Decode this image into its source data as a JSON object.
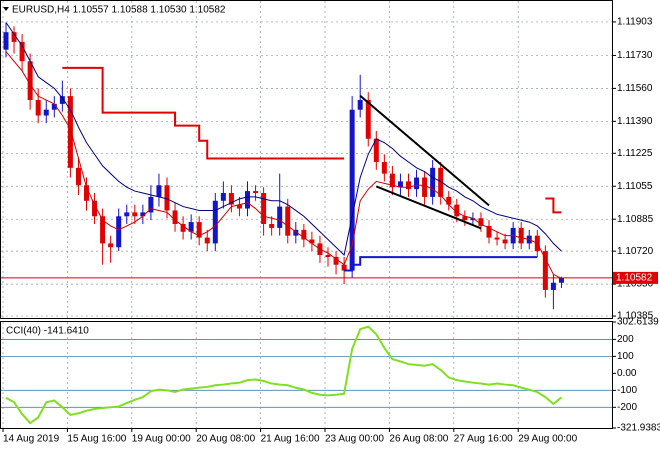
{
  "chart_data": [
    {
      "type": "candlestick",
      "title": "EURUSD,H4  1.10557 1.10588 1.10530 1.10582",
      "categories": [
        "14 Aug 2019",
        null,
        null,
        null,
        null,
        null,
        null,
        null,
        "15 Aug 16:00",
        null,
        null,
        null,
        null,
        null,
        null,
        null,
        "19 Aug 00:00",
        null,
        null,
        null,
        null,
        null,
        null,
        null,
        "20 Aug 08:00",
        null,
        null,
        null,
        null,
        null,
        null,
        null,
        "21 Aug 16:00",
        null,
        null,
        null,
        null,
        null,
        null,
        null,
        "23 Aug 00:00",
        null,
        null,
        null,
        null,
        null,
        null,
        null,
        "26 Aug 08:00",
        null,
        null,
        null,
        null,
        null,
        null,
        null,
        "27 Aug 16:00",
        null,
        null,
        null,
        null,
        null,
        null,
        null,
        "29 Aug 00:00",
        null,
        null,
        null,
        null,
        null
      ],
      "open": [
        1.1176,
        1.1185,
        1.118,
        1.117,
        1.115,
        1.1142,
        1.1145,
        1.1148,
        1.1152,
        1.1115,
        1.1106,
        1.1098,
        1.109,
        1.1076,
        1.1074,
        1.109,
        1.1092,
        1.109,
        1.1092,
        1.11,
        1.1106,
        1.1093,
        1.1086,
        1.1082,
        1.1087,
        1.1079,
        1.1076,
        1.1098,
        1.1102,
        1.1096,
        1.1094,
        1.1103,
        1.1102,
        1.1086,
        1.1084,
        1.1095,
        1.108,
        1.1083,
        1.1078,
        1.1076,
        1.107,
        1.1069,
        1.1065,
        1.1062,
        1.1145,
        1.115,
        1.113,
        1.1118,
        1.1112,
        1.1105,
        1.1108,
        1.1104,
        1.111,
        1.11,
        1.1115,
        1.11,
        1.1096,
        1.109,
        1.1088,
        1.1089,
        1.1085,
        1.1079,
        1.1078,
        1.1076,
        1.1084,
        1.1076,
        1.108,
        1.1072,
        1.1052,
        1.10557
      ],
      "high": [
        1.119,
        1.1188,
        1.1184,
        1.1174,
        1.1156,
        1.115,
        1.1152,
        1.116,
        1.1156,
        1.112,
        1.111,
        1.1102,
        1.1094,
        1.108,
        1.1094,
        1.1096,
        1.1096,
        1.1096,
        1.1106,
        1.1112,
        1.111,
        1.1097,
        1.109,
        1.1091,
        1.109,
        1.1083,
        1.1102,
        1.1108,
        1.1106,
        1.11,
        1.1108,
        1.1106,
        1.1105,
        1.109,
        1.1112,
        1.1099,
        1.1087,
        1.1086,
        1.1082,
        1.108,
        1.1074,
        1.1072,
        1.1069,
        1.1152,
        1.1163,
        1.1154,
        1.1134,
        1.1122,
        1.1116,
        1.1112,
        1.1112,
        1.1114,
        1.1113,
        1.1119,
        1.1118,
        1.1103,
        1.1099,
        1.1093,
        1.1092,
        1.1092,
        1.1088,
        1.1082,
        1.1081,
        1.1087,
        1.1087,
        1.1083,
        1.1083,
        1.1075,
        1.106,
        1.10588
      ],
      "low": [
        1.1172,
        1.1174,
        1.1165,
        1.1145,
        1.1138,
        1.1138,
        1.1141,
        1.1144,
        1.111,
        1.1101,
        1.1093,
        1.1086,
        1.1065,
        1.1066,
        1.1072,
        1.1086,
        1.1086,
        1.1086,
        1.1088,
        1.1095,
        1.1089,
        1.1082,
        1.1078,
        1.1078,
        1.1075,
        1.1072,
        1.1072,
        1.1094,
        1.1092,
        1.109,
        1.109,
        1.1098,
        1.108,
        1.108,
        1.108,
        1.1076,
        1.1076,
        1.1074,
        1.1072,
        1.1066,
        1.1064,
        1.106,
        1.1055,
        1.1058,
        1.1141,
        1.1126,
        1.1114,
        1.1108,
        1.1101,
        1.1101,
        1.11,
        1.11,
        1.1096,
        1.1096,
        1.1096,
        1.1093,
        1.1087,
        1.1085,
        1.1085,
        1.1082,
        1.1076,
        1.1075,
        1.1073,
        1.1073,
        1.1073,
        1.1073,
        1.1069,
        1.1048,
        1.1042,
        1.1053
      ],
      "close": [
        1.1185,
        1.118,
        1.117,
        1.115,
        1.1142,
        1.1145,
        1.1148,
        1.1152,
        1.1115,
        1.1106,
        1.1098,
        1.109,
        1.1076,
        1.1074,
        1.109,
        1.1092,
        1.109,
        1.1092,
        1.11,
        1.1106,
        1.1093,
        1.1086,
        1.1082,
        1.1087,
        1.1079,
        1.1076,
        1.1098,
        1.1102,
        1.1096,
        1.1094,
        1.1103,
        1.1102,
        1.1086,
        1.1084,
        1.1095,
        1.108,
        1.1083,
        1.1078,
        1.1076,
        1.107,
        1.1069,
        1.1065,
        1.1062,
        1.1145,
        1.115,
        1.113,
        1.1118,
        1.1112,
        1.1105,
        1.1108,
        1.1104,
        1.111,
        1.11,
        1.1115,
        1.11,
        1.1096,
        1.109,
        1.1088,
        1.1089,
        1.1085,
        1.1079,
        1.1078,
        1.1076,
        1.1084,
        1.1076,
        1.108,
        1.1072,
        1.1052,
        1.10557,
        1.10582
      ],
      "up_color": "#1414c8",
      "down_color": "#e00000",
      "series": [
        {
          "color": "#000080",
          "values": [
            1.119,
            1.1184,
            1.1178,
            1.117,
            1.1162,
            1.1159,
            1.1156,
            1.1151,
            1.1145,
            1.1136,
            1.1128,
            1.1122,
            1.1116,
            1.1112,
            1.1108,
            1.1105,
            1.1103,
            1.1102,
            1.1101,
            1.11,
            1.1099,
            1.1097,
            1.1095,
            1.1094,
            1.1093,
            1.1093,
            1.1093,
            1.1095,
            1.1097,
            1.1099,
            1.11,
            1.11,
            1.1099,
            1.1098,
            1.1098,
            1.1096,
            1.1093,
            1.109,
            1.1086,
            1.1082,
            1.1078,
            1.1074,
            1.107,
            1.109,
            1.111,
            1.1122,
            1.113,
            1.1128,
            1.1125,
            1.1121,
            1.1118,
            1.1115,
            1.1113,
            1.111,
            1.1108,
            1.1105,
            1.1103,
            1.11,
            1.1098,
            1.1095,
            1.1093,
            1.1091,
            1.109,
            1.1089,
            1.1088,
            1.1087,
            1.1085,
            1.1081,
            1.1076,
            1.1072
          ]
        },
        {
          "color": "#cc0000",
          "values": [
            1.1175,
            1.117,
            1.1165,
            1.1158,
            1.1152,
            1.115,
            1.1148,
            1.1142,
            1.1135,
            1.112,
            1.1105,
            1.1096,
            1.1088,
            1.1085,
            1.1083,
            1.1085,
            1.1087,
            1.109,
            1.1094,
            1.1093,
            1.1092,
            1.1088,
            1.1085,
            1.1082,
            1.108,
            1.1082,
            1.1085,
            1.109,
            1.1095,
            1.1096,
            1.1097,
            1.1094,
            1.109,
            1.1089,
            1.1088,
            1.1085,
            1.1082,
            1.1079,
            1.1076,
            1.1073,
            1.1071,
            1.1068,
            1.1065,
            1.1075,
            1.1098,
            1.1104,
            1.1108,
            1.1107,
            1.1106,
            1.1105,
            1.1105,
            1.1106,
            1.1106,
            1.1104,
            1.1101,
            1.1096,
            1.1092,
            1.109,
            1.1089,
            1.1086,
            1.1084,
            1.1082,
            1.108,
            1.108,
            1.1079,
            1.1078,
            1.1076,
            1.1068,
            1.106,
            1.1058
          ]
        },
        {
          "color": "#e00000",
          "step": true,
          "values": [
            null,
            null,
            null,
            null,
            null,
            null,
            null,
            1.11666,
            1.11666,
            1.11666,
            1.11666,
            1.11666,
            1.11435,
            1.11435,
            1.11435,
            1.11435,
            1.11435,
            1.11435,
            1.11435,
            1.11435,
            1.11435,
            1.11368,
            1.11368,
            1.11368,
            1.1129,
            1.11198,
            1.11198,
            1.11198,
            1.11198,
            1.11198,
            1.11198,
            1.11198,
            1.11198,
            1.11198,
            1.11198,
            1.11198,
            1.11198,
            1.11198,
            1.11198,
            1.11198,
            1.11198,
            1.11198,
            1.11198,
            null,
            null,
            null,
            null,
            null,
            null,
            null,
            null,
            null,
            null,
            null,
            null,
            null,
            null,
            null,
            null,
            null,
            null,
            null,
            null,
            null,
            null,
            null,
            null,
            1.10992,
            1.1092,
            1.1092
          ]
        },
        {
          "color": "#1414d0",
          "step": true,
          "values": [
            null,
            null,
            null,
            null,
            null,
            null,
            null,
            null,
            null,
            null,
            null,
            null,
            null,
            null,
            null,
            null,
            null,
            null,
            null,
            null,
            null,
            null,
            null,
            null,
            null,
            null,
            null,
            null,
            null,
            null,
            null,
            null,
            null,
            null,
            null,
            null,
            null,
            null,
            null,
            null,
            null,
            null,
            1.1062,
            1.1065,
            1.10689,
            1.10689,
            1.10689,
            1.10689,
            1.10689,
            1.10689,
            1.10689,
            1.10689,
            1.10689,
            1.10689,
            1.10689,
            1.10689,
            1.10689,
            1.10689,
            1.10689,
            1.10689,
            1.10689,
            1.10689,
            1.10689,
            1.10689,
            1.10689,
            1.10689,
            1.10689,
            null,
            null,
            null
          ]
        }
      ],
      "trendlines": [
        {
          "x": [
            44,
            60
          ],
          "y": [
            1.11522,
            1.10956
          ]
        },
        {
          "x": [
            46,
            59
          ],
          "y": [
            1.11054,
            1.10838
          ]
        }
      ],
      "current_price": 1.10582,
      "ylim": [
        1.10375,
        1.12011
      ],
      "yticks": [
        1.11903,
        {
          "value": 1.1173,
          "label": "1.11730"
        },
        {
          "value": 1.1156,
          "label": "1.11560"
        },
        {
          "value": 1.1139,
          "label": "1.11390"
        },
        1.11225,
        1.11055,
        1.10885,
        {
          "value": 1.1072,
          "label": "1.10720"
        },
        {
          "value": 1.1055,
          "label": "1.10550"
        },
        1.10385
      ],
      "grid": true
    },
    {
      "type": "line",
      "title": "CCI(40) -141.6410",
      "color": "#80e020",
      "values": [
        -144,
        -170,
        -240,
        -293,
        -260,
        -170,
        -160,
        -200,
        -245,
        -235,
        -220,
        -210,
        -204,
        -200,
        -195,
        -175,
        -156,
        -140,
        -105,
        -96,
        -100,
        -110,
        -95,
        -90,
        -84,
        -80,
        -70,
        -66,
        -60,
        -55,
        -40,
        -36,
        -45,
        -60,
        -66,
        -70,
        -85,
        -95,
        -115,
        -126,
        -130,
        -126,
        -120,
        144,
        260,
        275,
        230,
        150,
        84,
        70,
        54,
        50,
        45,
        54,
        20,
        -24,
        -40,
        -48,
        -55,
        -60,
        -66,
        -60,
        -66,
        -70,
        -84,
        -96,
        -110,
        -140,
        -180,
        -141.641
      ],
      "levels": [
        200,
        100,
        -100,
        -200
      ],
      "ylim": [
        -321.9383,
        302.6139
      ],
      "yticks": [
        302.6139,
        200,
        100,
        {
          "value": 0,
          "label": "0.00"
        },
        -100,
        -200,
        -321.9383
      ]
    }
  ]
}
